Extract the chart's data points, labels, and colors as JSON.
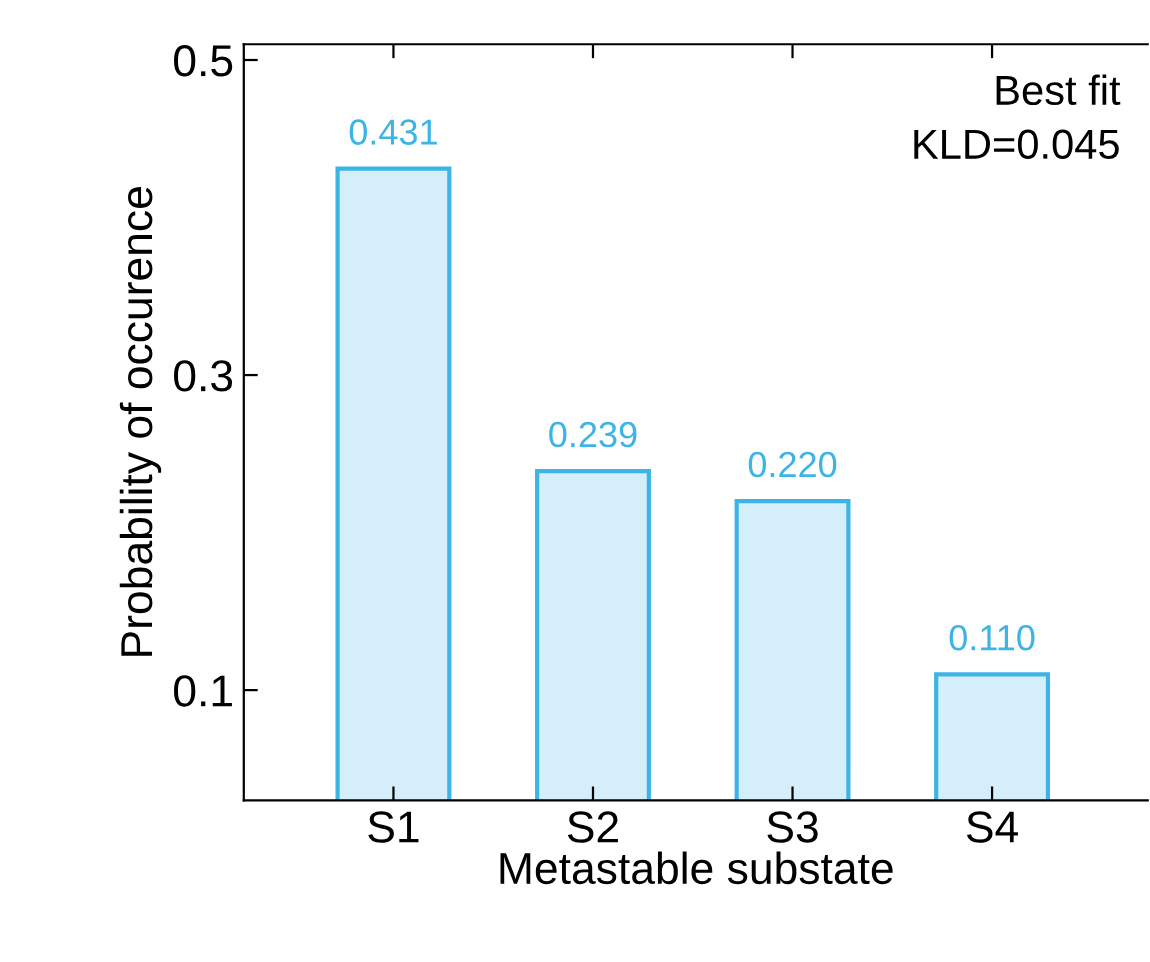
{
  "chart_data": {
    "type": "bar",
    "xlabel": "Metastable substate",
    "ylabel": "Probability of occurence",
    "categories": [
      "S1",
      "S2",
      "S3",
      "S4"
    ],
    "values": [
      0.431,
      0.239,
      0.22,
      0.11
    ],
    "color": "#3cb4e6",
    "ylim": [
      0.03,
      0.51
    ],
    "yticks": [
      0.1,
      0.3,
      0.5
    ],
    "value_labels": [
      "0.431",
      "0.239",
      "0.220",
      "0.110"
    ],
    "annotations": [
      "Best fit\nKLD=0.045"
    ]
  }
}
